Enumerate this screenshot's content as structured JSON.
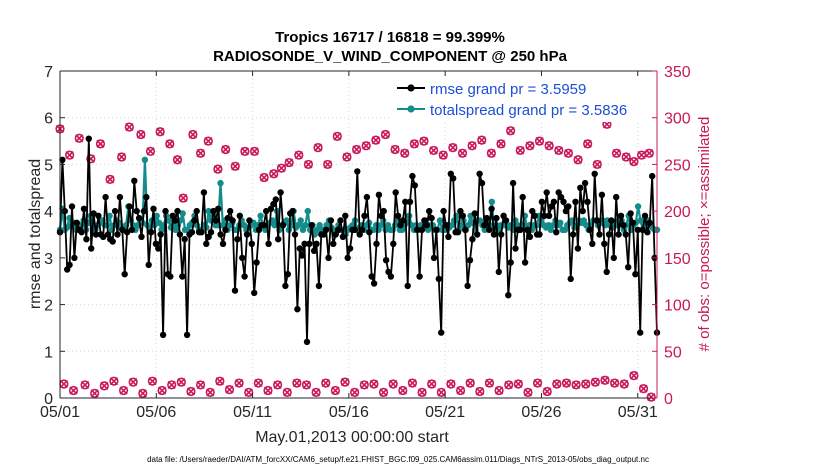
{
  "chart_data": {
    "type": "line",
    "title_line1": "Tropics 16717 / 16818 = 99.399%",
    "title_line2": "RADIOSONDE_V_WIND_COMPONENT @ 250 hPa",
    "xlabel": "May.01,2013 00:00:00 start",
    "ylabel_left": "rmse and totalspread",
    "ylabel_right": "# of obs: o=possible; ×=assimilated",
    "footer": "data file: /Users/raeder/DAI/ATM_forcXX/CAM6_setup/f.e21.FHIST_BGC.f09_025.CAM6assim.011/Diags_NTrS_2013-05/obs_diag_output.nc",
    "xlim": [
      1,
      32
    ],
    "ylim_left": [
      0,
      7
    ],
    "ylim_right": [
      0,
      350
    ],
    "x_ticks": [
      {
        "value": 1,
        "label": "05/01"
      },
      {
        "value": 6,
        "label": "05/06"
      },
      {
        "value": 11,
        "label": "05/11"
      },
      {
        "value": 16,
        "label": "05/16"
      },
      {
        "value": 21,
        "label": "05/21"
      },
      {
        "value": 26,
        "label": "05/26"
      },
      {
        "value": 31,
        "label": "05/31"
      }
    ],
    "y_ticks_left": [
      "0",
      "1",
      "2",
      "3",
      "4",
      "5",
      "6",
      "7"
    ],
    "y_ticks_right": [
      "0",
      "50",
      "100",
      "150",
      "200",
      "250",
      "300",
      "350"
    ],
    "colors": {
      "rmse": "#000000",
      "spread": "#148c8c",
      "obs": "#c8185a",
      "legend_text": "#1a4fd6"
    },
    "series": [
      {
        "name": "rmse grand pr = 3.5959",
        "values": [
          3.55,
          5.1,
          4.0,
          2.75,
          2.85,
          4.1,
          3.0,
          3.75,
          3.6,
          3.55,
          4.05,
          3.4,
          5.55,
          3.2,
          3.95,
          3.5,
          3.9,
          3.5,
          3.45,
          4.3,
          3.5,
          3.4,
          3.35,
          4.0,
          3.5,
          4.3,
          3.6,
          2.65,
          3.55,
          4.1,
          3.6,
          4.65,
          4.0,
          3.85,
          3.45,
          4.0,
          4.3,
          2.85,
          3.55,
          4.05,
          3.3,
          3.2,
          3.5,
          1.35,
          4.0,
          2.65,
          2.6,
          3.9,
          3.8,
          4.0,
          3.5,
          2.6,
          3.4,
          1.35,
          3.5,
          3.55,
          3.8,
          4.0,
          3.55,
          3.55,
          4.4,
          3.3,
          3.45,
          3.55,
          4.0,
          3.8,
          4.05,
          3.5,
          3.3,
          3.6,
          3.85,
          4.0,
          3.8,
          2.3,
          3.4,
          3.9,
          3.0,
          2.6,
          3.5,
          3.8,
          3.3,
          2.25,
          2.9,
          3.6,
          3.7,
          3.7,
          4.0,
          3.3,
          4.05,
          4.15,
          4.25,
          3.4,
          4.4,
          3.7,
          2.4,
          2.65,
          3.95,
          4.0,
          3.5,
          1.9,
          3.2,
          3.05,
          3.3,
          1.2,
          3.3,
          3.7,
          3.15,
          3.3,
          2.4,
          3.5,
          3.5,
          3.6,
          3.0,
          3.8,
          3.3,
          3.5,
          3.6,
          3.8,
          3.45,
          3.9,
          3.0,
          3.2,
          3.6,
          3.6,
          4.85,
          3.5,
          3.6,
          3.9,
          4.3,
          3.55,
          2.6,
          2.45,
          3.3,
          4.35,
          3.9,
          4.0,
          2.95,
          2.7,
          2.6,
          3.3,
          4.4,
          3.9,
          3.7,
          3.8,
          4.2,
          2.4,
          4.2,
          4.75,
          4.55,
          3.6,
          2.6,
          3.6,
          3.8,
          3.7,
          4.0,
          3.85,
          3.0,
          3.6,
          2.55,
          1.4,
          4.0,
          3.7,
          3.45,
          4.8,
          4.7,
          3.55,
          3.55,
          4.0,
          3.9,
          3.6,
          2.4,
          2.95,
          3.4,
          3.95,
          3.5,
          4.8,
          4.6,
          3.7,
          3.85,
          3.6,
          4.05,
          3.5,
          3.85,
          2.7,
          3.5,
          3.9,
          3.8,
          2.2,
          2.9,
          4.6,
          3.2,
          3.6,
          3.6,
          4.3,
          2.9,
          3.6,
          3.45,
          4.0,
          3.9,
          3.5,
          3.5,
          4.2,
          3.9,
          4.4,
          3.9,
          4.1,
          4.2,
          3.55,
          4.4,
          4.3,
          4.2,
          4.0,
          4.1,
          2.55,
          3.5,
          4.2,
          3.2,
          4.5,
          4.0,
          4.6,
          4.2,
          3.6,
          3.3,
          4.8,
          3.8,
          3.5,
          4.35,
          3.3,
          2.7,
          3.5,
          3.8,
          3.0,
          4.3,
          3.5,
          3.9,
          3.7,
          3.5,
          2.8,
          3.95,
          3.75,
          2.65,
          3.6,
          1.4,
          3.6,
          3.9,
          3.55,
          3.75,
          4.75,
          3.0,
          1.4
        ],
        "color": "#000000"
      },
      {
        "name": "totalspread grand pr = 3.5836",
        "values": [
          3.6,
          4.05,
          3.6,
          3.65,
          3.85,
          3.7,
          3.75,
          3.6,
          3.6,
          3.7,
          3.8,
          3.6,
          3.75,
          3.9,
          3.7,
          3.6,
          3.7,
          3.75,
          3.8,
          3.7,
          3.7,
          3.9,
          3.6,
          3.7,
          3.8,
          3.75,
          3.65,
          3.6,
          3.7,
          4.1,
          3.8,
          3.7,
          3.6,
          3.7,
          3.8,
          3.75,
          5.1,
          3.7,
          3.6,
          3.8,
          3.7,
          3.9,
          3.75,
          3.6,
          3.7,
          3.9,
          3.8,
          3.65,
          3.7,
          3.6,
          3.7,
          3.8,
          3.95,
          3.6,
          3.6,
          3.7,
          3.75,
          3.9,
          3.7,
          3.6,
          3.6,
          3.7,
          3.65,
          4.0,
          3.8,
          3.9,
          3.7,
          3.7,
          4.6,
          3.7,
          3.8,
          3.6,
          3.7,
          3.75,
          3.6,
          3.6,
          3.7,
          3.8,
          3.7,
          3.6,
          3.65,
          3.7,
          3.75,
          3.6,
          3.7,
          3.9,
          3.7,
          3.6,
          3.7,
          3.75,
          3.8,
          3.7,
          4.0,
          3.6,
          3.7,
          3.75,
          3.8,
          3.6,
          3.7,
          4.0,
          3.65,
          3.7,
          3.8,
          3.6,
          3.7,
          4.0,
          3.6,
          3.7,
          3.5,
          3.6,
          3.7,
          3.6,
          3.6,
          3.7,
          3.8,
          3.65,
          3.6,
          3.55,
          3.7,
          3.6,
          3.6,
          3.5,
          3.6,
          3.65,
          3.7,
          3.8,
          3.6,
          3.65,
          3.7,
          3.6,
          3.7,
          3.75,
          3.6,
          3.6,
          3.7,
          3.6,
          3.7,
          3.8,
          3.6,
          3.7,
          3.6,
          3.6,
          3.7,
          3.8,
          3.6,
          3.6,
          3.7,
          3.75,
          3.9,
          3.7,
          3.6,
          3.7,
          3.6,
          3.7,
          3.65,
          3.8,
          3.6,
          3.7,
          3.7,
          3.6,
          3.6,
          3.8,
          3.6,
          3.6,
          3.7,
          3.65,
          3.7,
          3.8,
          3.9,
          3.6,
          3.7,
          3.8,
          3.6,
          3.7,
          3.9,
          3.75,
          3.6,
          3.8,
          3.8,
          3.7,
          3.6,
          3.8,
          3.7,
          4.2,
          3.6,
          3.7,
          3.6,
          3.7,
          3.7,
          3.8,
          3.65,
          3.7,
          3.6,
          3.8,
          3.7,
          3.6,
          3.7,
          3.9,
          3.6,
          3.7,
          3.6,
          3.7,
          3.7,
          3.9,
          3.8,
          3.7,
          3.65,
          3.7,
          3.6,
          3.7,
          3.8,
          3.7,
          3.75,
          3.6,
          3.6,
          3.7,
          3.75,
          3.8,
          3.65,
          3.7,
          3.8,
          3.75,
          3.8,
          3.7,
          3.6,
          3.7,
          3.8,
          3.8,
          3.7,
          3.75,
          3.8,
          3.7,
          3.8,
          3.7,
          3.65,
          3.75,
          3.7,
          3.8,
          3.8,
          3.6,
          3.7,
          3.9,
          3.6,
          3.7,
          3.75,
          4.1,
          3.8,
          3.6,
          3.7,
          3.8,
          3.7,
          3.65,
          3.6,
          3.6
        ],
        "color": "#148c8c"
      }
    ],
    "obs_possible_high": [
      {
        "x": 1.0,
        "y": 288
      },
      {
        "x": 1.5,
        "y": 260
      },
      {
        "x": 2.0,
        "y": 278
      },
      {
        "x": 2.6,
        "y": 256
      },
      {
        "x": 3.1,
        "y": 272
      },
      {
        "x": 3.6,
        "y": 234
      },
      {
        "x": 4.2,
        "y": 258
      },
      {
        "x": 4.6,
        "y": 290
      },
      {
        "x": 5.2,
        "y": 282
      },
      {
        "x": 5.7,
        "y": 264
      },
      {
        "x": 6.2,
        "y": 285
      },
      {
        "x": 6.7,
        "y": 272
      },
      {
        "x": 7.1,
        "y": 255
      },
      {
        "x": 7.4,
        "y": 214
      },
      {
        "x": 7.9,
        "y": 282
      },
      {
        "x": 8.3,
        "y": 262
      },
      {
        "x": 8.7,
        "y": 275
      },
      {
        "x": 9.2,
        "y": 245
      },
      {
        "x": 9.6,
        "y": 266
      },
      {
        "x": 10.1,
        "y": 248
      },
      {
        "x": 10.6,
        "y": 264
      },
      {
        "x": 11.1,
        "y": 264
      },
      {
        "x": 11.6,
        "y": 236
      },
      {
        "x": 12.1,
        "y": 240
      },
      {
        "x": 12.5,
        "y": 246
      },
      {
        "x": 12.9,
        "y": 252
      },
      {
        "x": 13.4,
        "y": 260
      },
      {
        "x": 13.9,
        "y": 250
      },
      {
        "x": 14.4,
        "y": 268
      },
      {
        "x": 14.9,
        "y": 250
      },
      {
        "x": 15.4,
        "y": 280
      },
      {
        "x": 15.9,
        "y": 258
      },
      {
        "x": 16.4,
        "y": 266
      },
      {
        "x": 16.9,
        "y": 270
      },
      {
        "x": 17.4,
        "y": 276
      },
      {
        "x": 17.9,
        "y": 282
      },
      {
        "x": 18.4,
        "y": 266
      },
      {
        "x": 18.9,
        "y": 262
      },
      {
        "x": 19.4,
        "y": 272
      },
      {
        "x": 19.9,
        "y": 275
      },
      {
        "x": 20.4,
        "y": 265
      },
      {
        "x": 20.9,
        "y": 260
      },
      {
        "x": 21.4,
        "y": 268
      },
      {
        "x": 21.9,
        "y": 262
      },
      {
        "x": 22.4,
        "y": 270
      },
      {
        "x": 22.9,
        "y": 276
      },
      {
        "x": 23.4,
        "y": 262
      },
      {
        "x": 23.9,
        "y": 272
      },
      {
        "x": 24.4,
        "y": 286
      },
      {
        "x": 24.9,
        "y": 265
      },
      {
        "x": 25.4,
        "y": 270
      },
      {
        "x": 25.9,
        "y": 275
      },
      {
        "x": 26.4,
        "y": 270
      },
      {
        "x": 26.9,
        "y": 265
      },
      {
        "x": 27.4,
        "y": 262
      },
      {
        "x": 27.9,
        "y": 255
      },
      {
        "x": 28.4,
        "y": 272
      },
      {
        "x": 28.9,
        "y": 250
      },
      {
        "x": 29.4,
        "y": 293
      },
      {
        "x": 29.9,
        "y": 262
      },
      {
        "x": 30.4,
        "y": 258
      },
      {
        "x": 30.8,
        "y": 253
      },
      {
        "x": 31.2,
        "y": 260
      },
      {
        "x": 31.6,
        "y": 262
      }
    ],
    "obs_possible_low": [
      {
        "x": 1.2,
        "y": 15
      },
      {
        "x": 1.7,
        "y": 8
      },
      {
        "x": 2.3,
        "y": 14
      },
      {
        "x": 2.8,
        "y": 5
      },
      {
        "x": 3.3,
        "y": 13
      },
      {
        "x": 3.8,
        "y": 18
      },
      {
        "x": 4.3,
        "y": 8
      },
      {
        "x": 4.8,
        "y": 17
      },
      {
        "x": 5.3,
        "y": 5
      },
      {
        "x": 5.8,
        "y": 18
      },
      {
        "x": 6.3,
        "y": 8
      },
      {
        "x": 6.8,
        "y": 14
      },
      {
        "x": 7.3,
        "y": 17
      },
      {
        "x": 7.8,
        "y": 7
      },
      {
        "x": 8.3,
        "y": 14
      },
      {
        "x": 8.8,
        "y": 6
      },
      {
        "x": 9.3,
        "y": 18
      },
      {
        "x": 9.8,
        "y": 9
      },
      {
        "x": 10.3,
        "y": 16
      },
      {
        "x": 10.8,
        "y": 6
      },
      {
        "x": 11.3,
        "y": 16
      },
      {
        "x": 11.8,
        "y": 8
      },
      {
        "x": 12.3,
        "y": 14
      },
      {
        "x": 12.8,
        "y": 6
      },
      {
        "x": 13.3,
        "y": 16
      },
      {
        "x": 13.8,
        "y": 14
      },
      {
        "x": 14.3,
        "y": 6
      },
      {
        "x": 14.8,
        "y": 16
      },
      {
        "x": 15.3,
        "y": 8
      },
      {
        "x": 15.8,
        "y": 17
      },
      {
        "x": 16.3,
        "y": 6
      },
      {
        "x": 16.8,
        "y": 14
      },
      {
        "x": 17.3,
        "y": 15
      },
      {
        "x": 17.8,
        "y": 6
      },
      {
        "x": 18.3,
        "y": 15
      },
      {
        "x": 18.8,
        "y": 8
      },
      {
        "x": 19.3,
        "y": 16
      },
      {
        "x": 19.8,
        "y": 6
      },
      {
        "x": 20.3,
        "y": 15
      },
      {
        "x": 20.8,
        "y": 6
      },
      {
        "x": 21.3,
        "y": 15
      },
      {
        "x": 21.8,
        "y": 8
      },
      {
        "x": 22.3,
        "y": 16
      },
      {
        "x": 22.8,
        "y": 7
      },
      {
        "x": 23.3,
        "y": 16
      },
      {
        "x": 23.8,
        "y": 8
      },
      {
        "x": 24.3,
        "y": 14
      },
      {
        "x": 24.8,
        "y": 15
      },
      {
        "x": 25.3,
        "y": 6
      },
      {
        "x": 25.8,
        "y": 16
      },
      {
        "x": 26.3,
        "y": 7
      },
      {
        "x": 26.8,
        "y": 15
      },
      {
        "x": 27.3,
        "y": 16
      },
      {
        "x": 27.8,
        "y": 14
      },
      {
        "x": 28.3,
        "y": 15
      },
      {
        "x": 28.8,
        "y": 17
      },
      {
        "x": 29.3,
        "y": 19
      },
      {
        "x": 29.8,
        "y": 16
      },
      {
        "x": 30.3,
        "y": 15
      },
      {
        "x": 30.8,
        "y": 24
      },
      {
        "x": 31.3,
        "y": 10
      },
      {
        "x": 31.7,
        "y": 1
      }
    ]
  }
}
